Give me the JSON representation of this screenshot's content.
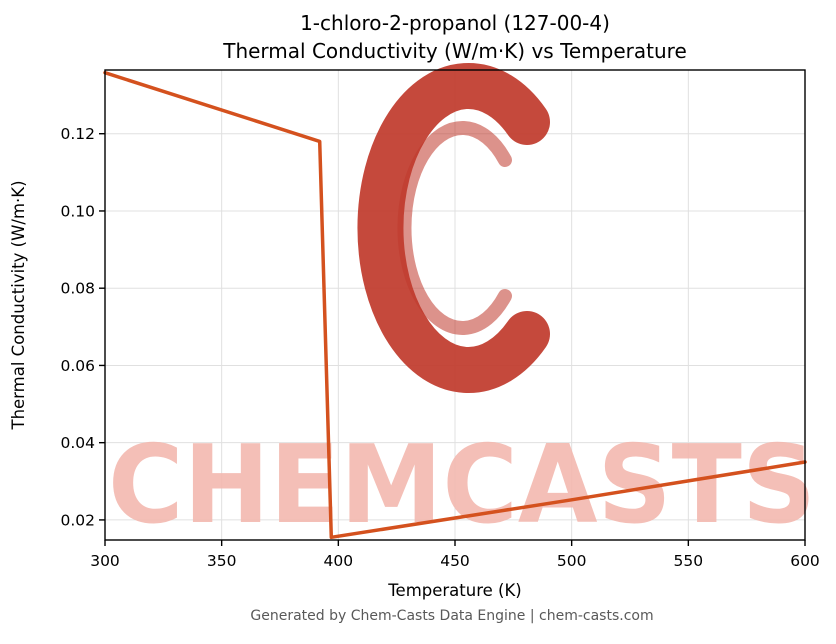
{
  "title": {
    "line1": "1-chloro-2-propanol (127-00-4)",
    "line2": "Thermal Conductivity (W/m·K) vs Temperature"
  },
  "footer": "Generated by Chem-Casts Data Engine | chem-casts.com",
  "watermark": {
    "text": "CHEMCASTS",
    "logo": "chemcasts-c-brush-logo"
  },
  "colors": {
    "line": "#d4511e",
    "watermark_text": "#f3b9b0",
    "watermark_logo": "#c0392b",
    "grid": "#e0e0e0",
    "spine": "#000000",
    "tick_label": "#000000",
    "footer_text": "#595959"
  },
  "chart_data": {
    "type": "line",
    "title": "1-chloro-2-propanol (127-00-4) — Thermal Conductivity (W/m·K) vs Temperature",
    "xlabel": "Temperature (K)",
    "ylabel": "Thermal Conductivity (W/m·K)",
    "xlim": [
      300,
      600
    ],
    "ylim": [
      0.0148,
      0.1365
    ],
    "xticks": [
      300,
      350,
      400,
      450,
      500,
      550,
      600
    ],
    "yticks": [
      0.02,
      0.04,
      0.06,
      0.08,
      0.1,
      0.12
    ],
    "grid": true,
    "legend": false,
    "series": [
      {
        "name": "thermal-conductivity",
        "color": "#d4511e",
        "points": [
          [
            300,
            0.1358
          ],
          [
            392,
            0.118
          ],
          [
            397,
            0.0155
          ],
          [
            450,
            0.0205
          ],
          [
            500,
            0.0252
          ],
          [
            550,
            0.0301
          ],
          [
            600,
            0.035
          ]
        ]
      }
    ]
  }
}
